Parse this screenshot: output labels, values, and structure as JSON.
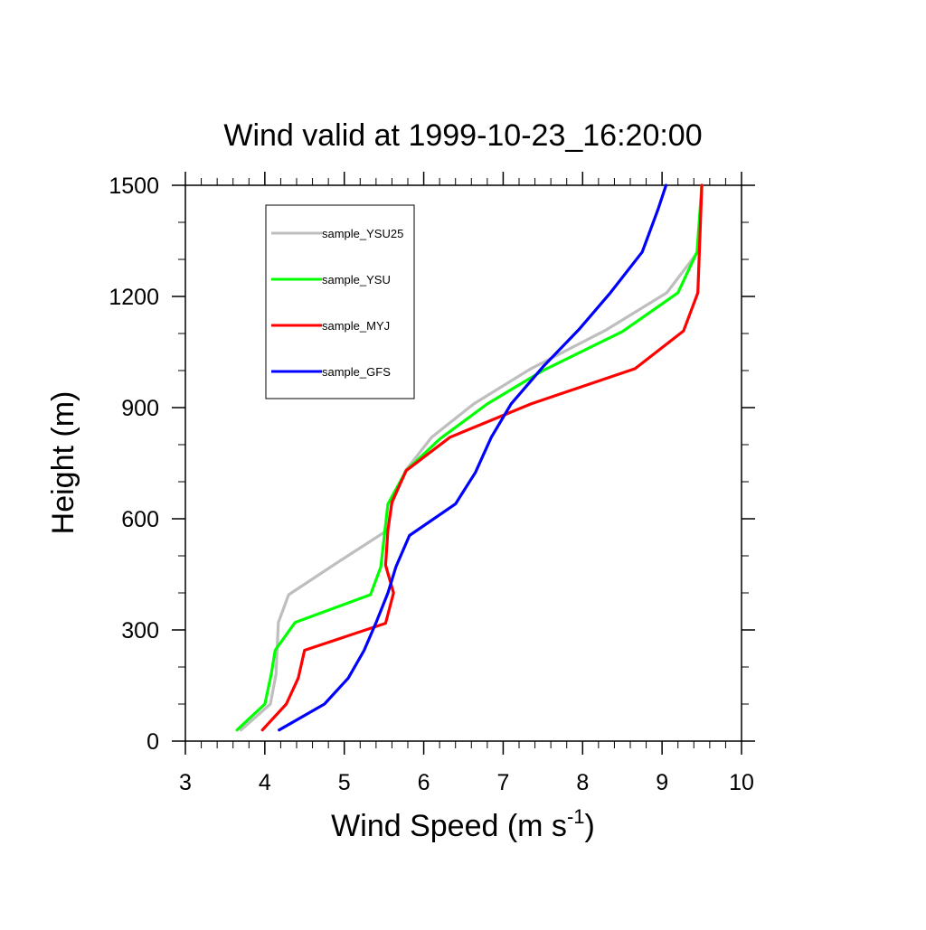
{
  "chart_data": {
    "type": "line",
    "title": "Wind valid at 1999-10-23_16:20:00",
    "xlabel": {
      "base": "Wind Speed (m s",
      "sup": "-1",
      "close": ")"
    },
    "ylabel": "Height (m)",
    "xlim": [
      3,
      10
    ],
    "ylim": [
      0,
      1500
    ],
    "x_ticks": [
      3,
      4,
      5,
      6,
      7,
      8,
      9,
      10
    ],
    "x_tick_labels": [
      "3",
      "4",
      "5",
      "6",
      "7",
      "8",
      "9",
      "10"
    ],
    "y_ticks": [
      0,
      300,
      600,
      900,
      1200,
      1500
    ],
    "y_tick_labels": [
      "0",
      "300",
      "600",
      "900",
      "1200",
      "1500"
    ],
    "x_minor_step": 0.2,
    "y_minor_step": 100,
    "grid": false,
    "legend_position": "top-left",
    "series": [
      {
        "name": "sample_YSU25",
        "color": "#bebebe",
        "points": [
          [
            3.7,
            30
          ],
          [
            4.07,
            100
          ],
          [
            4.14,
            180
          ],
          [
            4.17,
            320
          ],
          [
            4.3,
            395
          ],
          [
            4.9,
            480
          ],
          [
            5.55,
            570
          ],
          [
            5.6,
            640
          ],
          [
            5.77,
            730
          ],
          [
            6.1,
            820
          ],
          [
            6.63,
            910
          ],
          [
            7.35,
            1005
          ],
          [
            8.3,
            1110
          ],
          [
            9.06,
            1210
          ],
          [
            9.45,
            1320
          ],
          [
            9.5,
            1500
          ]
        ]
      },
      {
        "name": "sample_YSU",
        "color": "#00ff00",
        "points": [
          [
            3.65,
            30
          ],
          [
            4.0,
            100
          ],
          [
            4.08,
            180
          ],
          [
            4.13,
            245
          ],
          [
            4.38,
            320
          ],
          [
            5.33,
            395
          ],
          [
            5.46,
            470
          ],
          [
            5.55,
            640
          ],
          [
            5.78,
            730
          ],
          [
            6.2,
            815
          ],
          [
            6.8,
            910
          ],
          [
            7.5,
            1000
          ],
          [
            8.5,
            1105
          ],
          [
            9.2,
            1210
          ],
          [
            9.44,
            1320
          ],
          [
            9.5,
            1500
          ]
        ]
      },
      {
        "name": "sample_MYJ",
        "color": "#ff0000",
        "points": [
          [
            3.97,
            30
          ],
          [
            4.27,
            100
          ],
          [
            4.42,
            170
          ],
          [
            4.5,
            245
          ],
          [
            5.52,
            318
          ],
          [
            5.62,
            400
          ],
          [
            5.52,
            475
          ],
          [
            5.55,
            570
          ],
          [
            5.6,
            645
          ],
          [
            5.78,
            730
          ],
          [
            6.33,
            820
          ],
          [
            7.35,
            910
          ],
          [
            8.66,
            1005
          ],
          [
            9.27,
            1107
          ],
          [
            9.45,
            1210
          ],
          [
            9.5,
            1500
          ]
        ]
      },
      {
        "name": "sample_GFS",
        "color": "#0000ff",
        "points": [
          [
            4.18,
            30
          ],
          [
            4.75,
            100
          ],
          [
            5.05,
            170
          ],
          [
            5.25,
            245
          ],
          [
            5.4,
            320
          ],
          [
            5.55,
            400
          ],
          [
            5.65,
            470
          ],
          [
            5.82,
            555
          ],
          [
            6.4,
            640
          ],
          [
            6.65,
            725
          ],
          [
            6.85,
            820
          ],
          [
            7.1,
            910
          ],
          [
            7.5,
            1010
          ],
          [
            7.95,
            1110
          ],
          [
            8.35,
            1210
          ],
          [
            8.75,
            1320
          ],
          [
            8.95,
            1435
          ],
          [
            9.05,
            1500
          ]
        ]
      }
    ]
  }
}
